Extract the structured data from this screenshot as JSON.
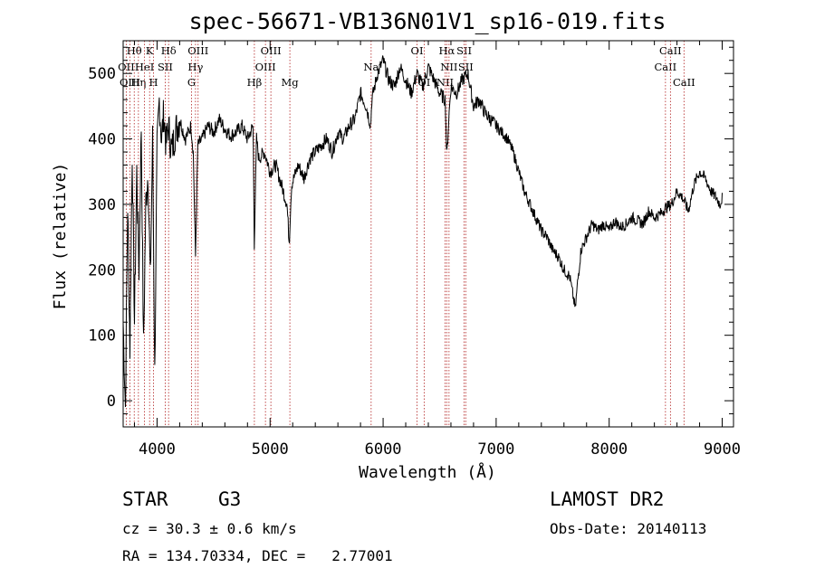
{
  "chart_data": {
    "type": "line",
    "title": "spec-56671-VB136N01V1_sp16-019.fits",
    "xlabel": "Wavelength (Å)",
    "ylabel": "Flux (relative)",
    "xlim": [
      3700,
      9100
    ],
    "ylim": [
      -40,
      550
    ],
    "x_ticks": [
      4000,
      5000,
      6000,
      7000,
      8000,
      9000
    ],
    "y_ticks": [
      0,
      100,
      200,
      300,
      400,
      500
    ],
    "grid": false,
    "series_color": "#000000",
    "line_color": "#b22222",
    "spectrum": {
      "x": [
        3700,
        3720,
        3740,
        3760,
        3780,
        3800,
        3820,
        3840,
        3860,
        3880,
        3900,
        3920,
        3940,
        3960,
        3980,
        4000,
        4020,
        4040,
        4060,
        4080,
        4100,
        4130,
        4160,
        4200,
        4250,
        4300,
        4320,
        4340,
        4360,
        4400,
        4450,
        4500,
        4550,
        4600,
        4650,
        4700,
        4750,
        4800,
        4850,
        4860,
        4880,
        4900,
        4950,
        5000,
        5050,
        5100,
        5150,
        5170,
        5180,
        5190,
        5250,
        5300,
        5350,
        5400,
        5450,
        5500,
        5550,
        5600,
        5650,
        5700,
        5750,
        5800,
        5850,
        5890,
        5900,
        5950,
        6000,
        6050,
        6100,
        6150,
        6200,
        6250,
        6300,
        6350,
        6400,
        6450,
        6500,
        6550,
        6563,
        6580,
        6600,
        6650,
        6700,
        6750,
        6800,
        6850,
        6900,
        6950,
        7000,
        7050,
        7100,
        7150,
        7200,
        7250,
        7300,
        7350,
        7400,
        7450,
        7500,
        7550,
        7600,
        7650,
        7700,
        7720,
        7750,
        7800,
        7850,
        7900,
        7950,
        8000,
        8050,
        8100,
        8150,
        8200,
        8250,
        8300,
        8350,
        8400,
        8450,
        8500,
        8550,
        8600,
        8650,
        8700,
        8750,
        8800,
        8850,
        8900,
        8950,
        8980,
        9000
      ],
      "y": [
        120,
        -10,
        300,
        80,
        380,
        120,
        350,
        200,
        420,
        80,
        300,
        350,
        180,
        400,
        40,
        380,
        460,
        400,
        440,
        390,
        420,
        380,
        410,
        430,
        400,
        420,
        380,
        220,
        390,
        400,
        420,
        410,
        430,
        415,
        405,
        410,
        420,
        400,
        420,
        240,
        400,
        370,
        380,
        350,
        360,
        330,
        300,
        240,
        290,
        330,
        360,
        340,
        370,
        380,
        390,
        400,
        380,
        410,
        400,
        420,
        430,
        470,
        450,
        420,
        460,
        500,
        520,
        490,
        480,
        510,
        490,
        470,
        500,
        480,
        510,
        490,
        470,
        460,
        370,
        430,
        480,
        470,
        490,
        500,
        450,
        460,
        440,
        430,
        420,
        410,
        400,
        380,
        350,
        320,
        300,
        280,
        260,
        250,
        230,
        220,
        200,
        190,
        140,
        180,
        230,
        250,
        270,
        260,
        270,
        260,
        275,
        265,
        270,
        280,
        275,
        270,
        290,
        280,
        285,
        295,
        300,
        320,
        310,
        290,
        330,
        350,
        340,
        320,
        310,
        300,
        310
      ],
      "y_detail_seed": 7
    },
    "lines": [
      {
        "label": "Hθ",
        "x": 3798,
        "row": 0
      },
      {
        "label": "OII",
        "x": 3727,
        "row": 1
      },
      {
        "label": "OIII",
        "x": 3760,
        "row": 2
      },
      {
        "label": "Hη",
        "x": 3835,
        "row": 2
      },
      {
        "label": "HeI",
        "x": 3889,
        "row": 1
      },
      {
        "label": "K",
        "x": 3934,
        "row": 0
      },
      {
        "label": "H",
        "x": 3969,
        "row": 2
      },
      {
        "label": "SII",
        "x": 4072,
        "row": 1
      },
      {
        "label": "Hδ",
        "x": 4102,
        "row": 0
      },
      {
        "label": "G",
        "x": 4305,
        "row": 2
      },
      {
        "label": "Hγ",
        "x": 4340,
        "row": 1
      },
      {
        "label": "OIII",
        "x": 4363,
        "row": 0
      },
      {
        "label": "Hβ",
        "x": 4861,
        "row": 2
      },
      {
        "label": "OIII",
        "x": 4959,
        "row": 1
      },
      {
        "label": "OIII",
        "x": 5007,
        "row": 0
      },
      {
        "label": "Mg",
        "x": 5175,
        "row": 2
      },
      {
        "label": "Na",
        "x": 5894,
        "row": 1
      },
      {
        "label": "OI",
        "x": 6300,
        "row": 0
      },
      {
        "label": "OI",
        "x": 6363,
        "row": 2
      },
      {
        "label": "NII",
        "x": 6548,
        "row": 2
      },
      {
        "label": "Hα",
        "x": 6563,
        "row": 0
      },
      {
        "label": "NII",
        "x": 6583,
        "row": 1
      },
      {
        "label": "SII",
        "x": 6717,
        "row": 0
      },
      {
        "label": "SII",
        "x": 6731,
        "row": 1
      },
      {
        "label": "CaII",
        "x": 8498,
        "row": 1
      },
      {
        "label": "CaII",
        "x": 8542,
        "row": 0
      },
      {
        "label": "CaII",
        "x": 8662,
        "row": 2
      }
    ]
  },
  "info": {
    "class": "STAR",
    "subclass": "G3",
    "survey": "LAMOST DR2",
    "cz": "cz = 30.3 ± 0.6 km/s",
    "obs_date": "Obs-Date: 20140113",
    "radec": "RA = 134.70334, DEC =   2.77001"
  }
}
